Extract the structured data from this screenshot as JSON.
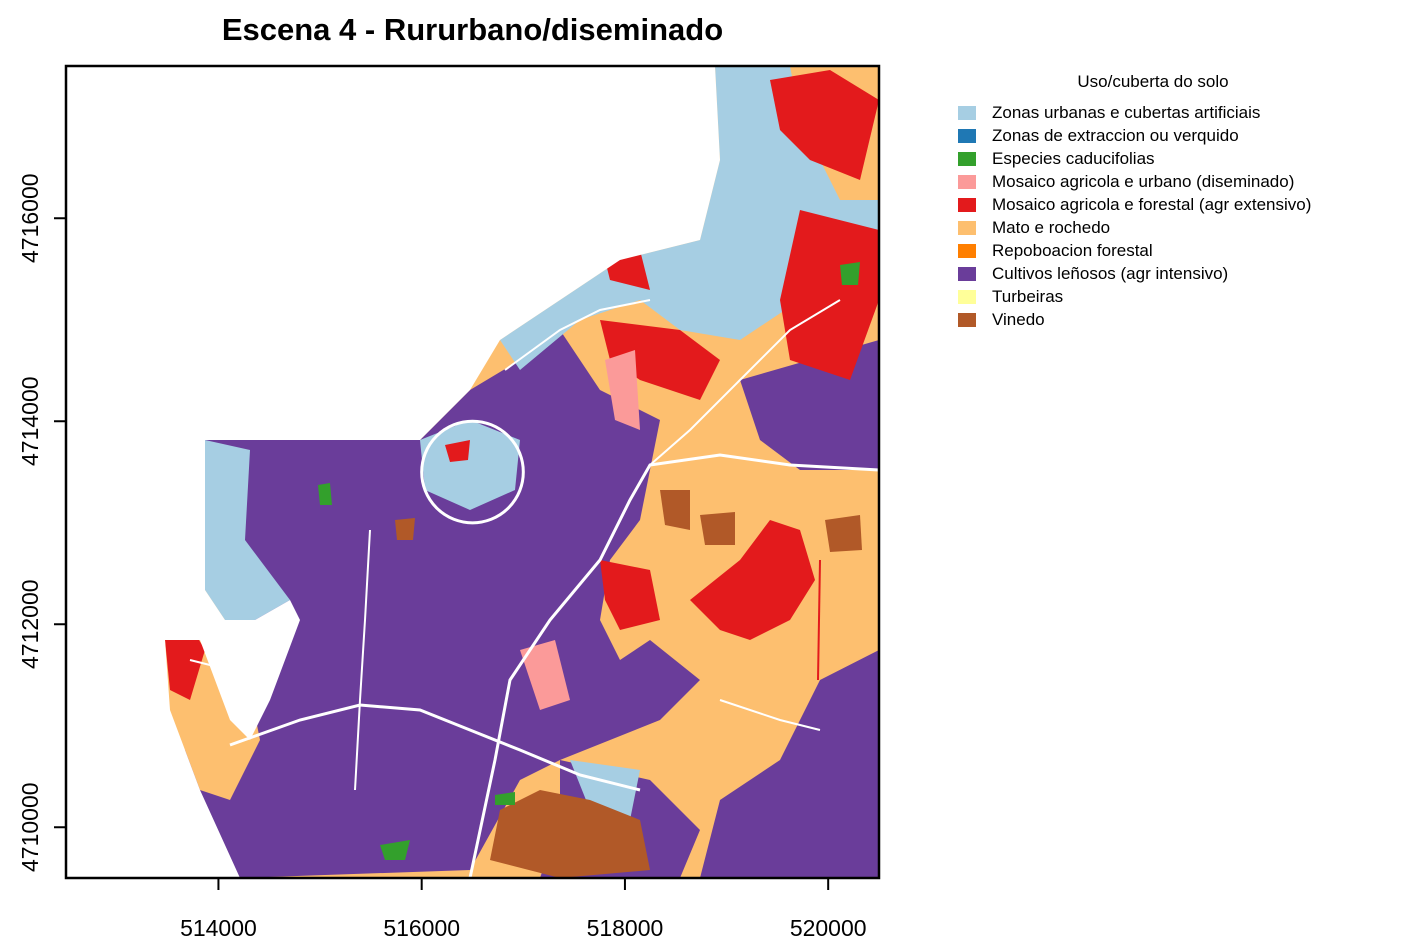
{
  "title": "Escena 4 - Rururbano/diseminado",
  "axes": {
    "x_ticks": [
      {
        "value": 514000,
        "label": "514000"
      },
      {
        "value": 516000,
        "label": "516000"
      },
      {
        "value": 518000,
        "label": "518000"
      },
      {
        "value": 520000,
        "label": "520000"
      }
    ],
    "y_ticks": [
      {
        "value": 4710000,
        "label": "4710000"
      },
      {
        "value": 4712000,
        "label": "4712000"
      },
      {
        "value": 4714000,
        "label": "4714000"
      },
      {
        "value": 4716000,
        "label": "4716000"
      }
    ],
    "x_range": [
      512500,
      520500
    ],
    "y_range": [
      4709500,
      4717500
    ]
  },
  "legend": {
    "title": "Uso/cuberta do solo",
    "items": [
      {
        "label": "Zonas urbanas e cubertas artificiais",
        "color": "#a6cee3"
      },
      {
        "label": "Zonas de extraccion ou verquido",
        "color": "#1f78b4"
      },
      {
        "label": "Especies caducifolias",
        "color": "#33a02c"
      },
      {
        "label": "Mosaico agricola e urbano (diseminado)",
        "color": "#fb9a99"
      },
      {
        "label": "Mosaico agricola e forestal (agr extensivo)",
        "color": "#e31a1c"
      },
      {
        "label": "Mato e rochedo",
        "color": "#fdbf6f"
      },
      {
        "label": "Repoboacion forestal",
        "color": "#ff7f00"
      },
      {
        "label": "Cultivos leñosos (agr intensivo)",
        "color": "#6a3d9a"
      },
      {
        "label": "Turbeiras",
        "color": "#ffff99"
      },
      {
        "label": "Vinedo",
        "color": "#b15928"
      }
    ]
  },
  "map": {
    "scene_circle": {
      "center": [
        516500,
        4713500
      ],
      "radius": 500
    }
  }
}
